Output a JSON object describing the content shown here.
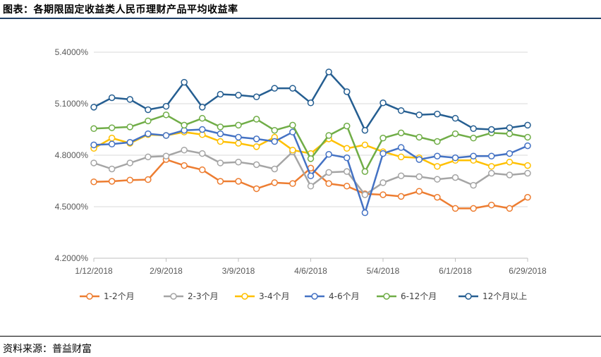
{
  "figure": {
    "title": "图表：各期限固定收益类人民币理财产品平均收益率",
    "source": "资料来源：普益财富"
  },
  "chart_data": {
    "type": "line",
    "title": "",
    "xlabel": "",
    "ylabel": "",
    "ylim": [
      4.2,
      5.4
    ],
    "y_ticks": [
      "4.2000%",
      "4.5000%",
      "4.8000%",
      "5.1000%",
      "5.4000%"
    ],
    "y_tick_values": [
      4.2,
      4.5,
      4.8,
      5.1,
      5.4
    ],
    "x_tick_labels": [
      "1/12/2018",
      "2/9/2018",
      "3/9/2018",
      "4/6/2018",
      "5/4/2018",
      "6/1/2018",
      "6/29/2018"
    ],
    "grid": "horizontal",
    "legend_position": "bottom",
    "x": [
      "1/12/2018",
      "1/19/2018",
      "1/26/2018",
      "2/2/2018",
      "2/9/2018",
      "2/16/2018",
      "2/23/2018",
      "3/2/2018",
      "3/9/2018",
      "3/16/2018",
      "3/23/2018",
      "3/30/2018",
      "4/6/2018",
      "4/13/2018",
      "4/20/2018",
      "4/27/2018",
      "5/4/2018",
      "5/11/2018",
      "5/18/2018",
      "5/25/2018",
      "6/1/2018",
      "6/8/2018",
      "6/15/2018",
      "6/22/2018",
      "6/29/2018"
    ],
    "series": [
      {
        "name": "1-2个月",
        "color": "#ed7d31",
        "values": [
          4.645,
          4.648,
          4.655,
          4.658,
          4.775,
          4.74,
          4.715,
          4.648,
          4.648,
          4.605,
          4.64,
          4.635,
          4.725,
          4.635,
          4.62,
          4.575,
          4.57,
          4.56,
          4.59,
          4.555,
          4.49,
          4.49,
          4.51,
          4.49,
          4.555
        ]
      },
      {
        "name": "2-3个月",
        "color": "#a5a5a5",
        "values": [
          4.755,
          4.72,
          4.755,
          4.79,
          4.795,
          4.83,
          4.81,
          4.755,
          4.76,
          4.745,
          4.72,
          4.82,
          4.62,
          4.7,
          4.705,
          4.57,
          4.64,
          4.68,
          4.675,
          4.66,
          4.67,
          4.625,
          4.695,
          4.685,
          4.695
        ]
      },
      {
        "name": "3-4个月",
        "color": "#ffc000",
        "values": [
          4.84,
          4.9,
          4.87,
          4.92,
          4.915,
          4.935,
          4.92,
          4.88,
          4.87,
          4.85,
          4.905,
          4.83,
          4.81,
          4.895,
          4.84,
          4.86,
          4.82,
          4.79,
          4.785,
          4.735,
          4.77,
          4.77,
          4.735,
          4.76,
          4.74
        ]
      },
      {
        "name": "4-6个月",
        "color": "#4472c4",
        "values": [
          4.86,
          4.865,
          4.875,
          4.925,
          4.915,
          4.945,
          4.95,
          4.925,
          4.905,
          4.895,
          4.88,
          4.935,
          4.68,
          4.805,
          4.785,
          4.465,
          4.81,
          4.845,
          4.775,
          4.795,
          4.785,
          4.795,
          4.795,
          4.81,
          4.855
        ]
      },
      {
        "name": "6-12个月",
        "color": "#70ad47",
        "values": [
          4.955,
          4.96,
          4.965,
          5.0,
          5.035,
          4.975,
          5.015,
          4.965,
          4.975,
          5.01,
          4.945,
          4.975,
          4.78,
          4.915,
          4.97,
          4.705,
          4.9,
          4.93,
          4.905,
          4.88,
          4.925,
          4.9,
          4.93,
          4.925,
          4.905
        ]
      },
      {
        "name": "12个月以上",
        "color": "#255e91",
        "values": [
          5.08,
          5.135,
          5.125,
          5.065,
          5.085,
          5.225,
          5.08,
          5.155,
          5.15,
          5.14,
          5.19,
          5.19,
          5.105,
          5.285,
          5.17,
          4.945,
          5.105,
          5.06,
          5.035,
          5.04,
          5.015,
          4.955,
          4.95,
          4.96,
          4.975
        ]
      }
    ]
  }
}
